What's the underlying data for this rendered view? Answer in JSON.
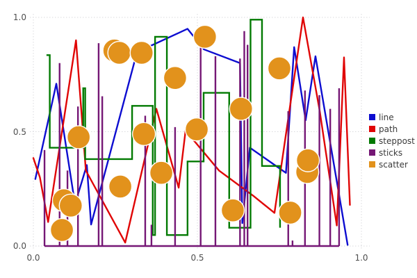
{
  "figure": {
    "background": "#ffffff"
  },
  "axes": {
    "x_tick_labels": [
      "0.0",
      "0.5",
      "1.0"
    ],
    "y_tick_labels": [
      "0.0",
      "0.5",
      "1.0"
    ],
    "x_tick_values": [
      0.0,
      0.5,
      1.0
    ],
    "y_tick_values": [
      0.0,
      0.5,
      1.0
    ],
    "grid_color": "#d9d9dd",
    "tick_label_color": "#4e4e4e"
  },
  "legend": {
    "position": "right-outside",
    "text_color": "#3a3a3a"
  },
  "chart_data": {
    "type": "mixed",
    "title": "",
    "xlabel": "",
    "ylabel": "",
    "xlim": [
      0,
      1
    ],
    "ylim": [
      0,
      1
    ],
    "grid": "dotted",
    "legend_position": "center right outside",
    "series": [
      {
        "name": "line",
        "type": "line",
        "color": "#0d0dd0",
        "x": [
          0.006,
          0.07,
          0.127,
          0.163,
          0.176,
          0.316,
          0.47,
          0.52,
          0.63,
          0.637,
          0.66,
          0.77,
          0.795,
          0.83,
          0.86,
          0.958
        ],
        "y": [
          0.293,
          0.71,
          0.183,
          0.354,
          0.094,
          0.848,
          0.95,
          0.86,
          0.8,
          0.1,
          0.43,
          0.32,
          0.87,
          0.55,
          0.83,
          0.005
        ]
      },
      {
        "name": "path",
        "type": "line",
        "color": "#e00505",
        "x": [
          0.0,
          0.02,
          0.045,
          0.13,
          0.16,
          0.28,
          0.375,
          0.443,
          0.464,
          0.566,
          0.67,
          0.735,
          0.822,
          0.873,
          0.925,
          0.947,
          0.965
        ],
        "y": [
          0.385,
          0.3,
          0.105,
          0.9,
          0.33,
          0.015,
          0.6,
          0.255,
          0.505,
          0.33,
          0.22,
          0.145,
          1.0,
          0.59,
          0.09,
          0.825,
          0.18
        ]
      },
      {
        "name": "steppost",
        "type": "step-post",
        "color": "#027a02",
        "x": [
          0.04,
          0.05,
          0.152,
          0.158,
          0.301,
          0.364,
          0.371,
          0.407,
          0.47,
          0.519,
          0.597,
          0.662,
          0.697,
          0.752
        ],
        "y": [
          0.835,
          0.43,
          0.69,
          0.38,
          0.613,
          0.048,
          0.915,
          0.048,
          0.37,
          0.67,
          0.08,
          0.99,
          0.35,
          0.08
        ]
      },
      {
        "name": "sticks",
        "type": "stem",
        "color": "#751775",
        "baseline": 0,
        "x": [
          0.034,
          0.08,
          0.104,
          0.136,
          0.199,
          0.21,
          0.341,
          0.36,
          0.432,
          0.51,
          0.555,
          0.63,
          0.643,
          0.653,
          0.777,
          0.79,
          0.828,
          0.872,
          0.905,
          0.932
        ],
        "y": [
          0.42,
          0.8,
          0.33,
          0.61,
          0.887,
          0.655,
          0.57,
          0.093,
          0.52,
          0.887,
          0.83,
          0.82,
          0.94,
          0.88,
          0.59,
          0.024,
          0.68,
          0.66,
          0.6,
          0.69
        ]
      },
      {
        "name": "scatter",
        "type": "scatter",
        "color": "#e2921c",
        "marker_edge_color": "#ffffff",
        "x": [
          0.087,
          0.093,
          0.114,
          0.138,
          0.247,
          0.262,
          0.265,
          0.33,
          0.337,
          0.39,
          0.432,
          0.498,
          0.523,
          0.608,
          0.633,
          0.75,
          0.783,
          0.835,
          0.837
        ],
        "y": [
          0.07,
          0.2,
          0.177,
          0.476,
          0.855,
          0.845,
          0.26,
          0.845,
          0.49,
          0.32,
          0.735,
          0.51,
          0.915,
          0.156,
          0.6,
          0.777,
          0.146,
          0.324,
          0.375
        ]
      }
    ]
  }
}
